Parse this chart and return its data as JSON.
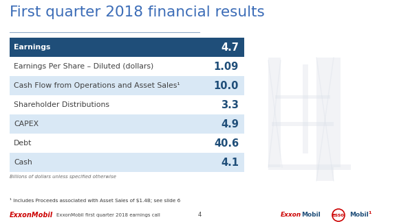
{
  "title": "First quarter 2018 financial results",
  "title_color": "#3B6CB7",
  "title_fontsize": 15.5,
  "rows": [
    {
      "label": "Earnings",
      "value": "4.7",
      "bg": "#1F4E79",
      "label_color": "#FFFFFF",
      "value_color": "#FFFFFF",
      "bold_label": true,
      "bold_value": true
    },
    {
      "label": "Earnings Per Share – Diluted (dollars)",
      "value": "1.09",
      "bg": "#FFFFFF",
      "label_color": "#404040",
      "value_color": "#1F4E79",
      "bold_label": false,
      "bold_value": true,
      "label_italic": false
    },
    {
      "label": "Cash Flow from Operations and Asset Sales¹",
      "value": "10.0",
      "bg": "#D9E8F5",
      "label_color": "#404040",
      "value_color": "#1F4E79",
      "bold_label": false,
      "bold_value": true,
      "label_italic": false
    },
    {
      "label": "Shareholder Distributions",
      "value": "3.3",
      "bg": "#FFFFFF",
      "label_color": "#404040",
      "value_color": "#1F4E79",
      "bold_label": false,
      "bold_value": true,
      "label_italic": false
    },
    {
      "label": "CAPEX",
      "value": "4.9",
      "bg": "#D9E8F5",
      "label_color": "#404040",
      "value_color": "#1F4E79",
      "bold_label": false,
      "bold_value": true,
      "label_italic": false
    },
    {
      "label": "Debt",
      "value": "40.6",
      "bg": "#FFFFFF",
      "label_color": "#404040",
      "value_color": "#1F4E79",
      "bold_label": false,
      "bold_value": true,
      "label_italic": false
    },
    {
      "label": "Cash",
      "value": "4.1",
      "bg": "#D9E8F5",
      "label_color": "#404040",
      "value_color": "#1F4E79",
      "bold_label": false,
      "bold_value": true,
      "label_italic": false
    }
  ],
  "underline_color": "#8EA9C8",
  "footnote_small": "Billions of dollars unless specified otherwise",
  "footnote_bottom": "¹ Includes Proceeds associated with Asset Sales of $1.4B; see slide 6",
  "footer_left_brand": "ExxonMobil",
  "footer_left_text": "ExxonMobil first quarter 2018 earnings call",
  "footer_page": "4",
  "bg_color": "#FFFFFF",
  "label_fontsize": 7.8,
  "value_fontsize": 10.5
}
